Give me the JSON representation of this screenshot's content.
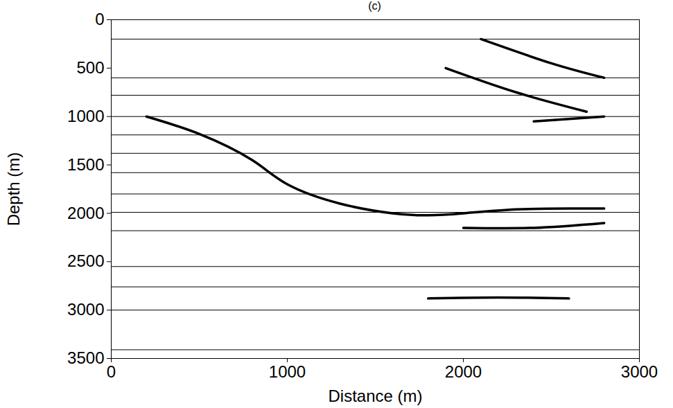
{
  "chart_data": {
    "type": "line",
    "title": "(c)",
    "x_label": "Distance (m)",
    "y_label": "Depth (m)",
    "xlim": [
      0,
      3000
    ],
    "ylim": [
      0,
      3500
    ],
    "xticks": [
      0,
      1000,
      2000,
      3000
    ],
    "yticks": [
      0,
      500,
      1000,
      1500,
      2000,
      2500,
      3000,
      3500
    ],
    "grid": false,
    "horizontal_lines": [
      200,
      600,
      780,
      1000,
      1190,
      1380,
      1580,
      1800,
      1990,
      2180,
      2550,
      2760,
      3000,
      3410
    ],
    "series": [
      {
        "color": "#000000",
        "x": [
          200,
          500,
          800,
          1000,
          1300,
          1600,
          1800,
          2000,
          2300,
          2600,
          2800
        ],
        "values": [
          1000,
          1180,
          1450,
          1700,
          1900,
          2000,
          2020,
          2000,
          1960,
          1950,
          1950
        ]
      },
      {
        "color": "#000000",
        "x": [
          2000,
          2400,
          2800
        ],
        "values": [
          2150,
          2150,
          2100
        ]
      },
      {
        "color": "#000000",
        "x": [
          1800,
          2200,
          2600
        ],
        "values": [
          2880,
          2870,
          2880
        ]
      },
      {
        "color": "#000000",
        "x": [
          2400,
          2800
        ],
        "values": [
          1050,
          1000
        ]
      },
      {
        "color": "#000000",
        "x": [
          1900,
          2300,
          2700
        ],
        "values": [
          500,
          750,
          950
        ]
      },
      {
        "color": "#000000",
        "x": [
          2100,
          2500,
          2800
        ],
        "values": [
          200,
          450,
          600
        ]
      }
    ]
  }
}
